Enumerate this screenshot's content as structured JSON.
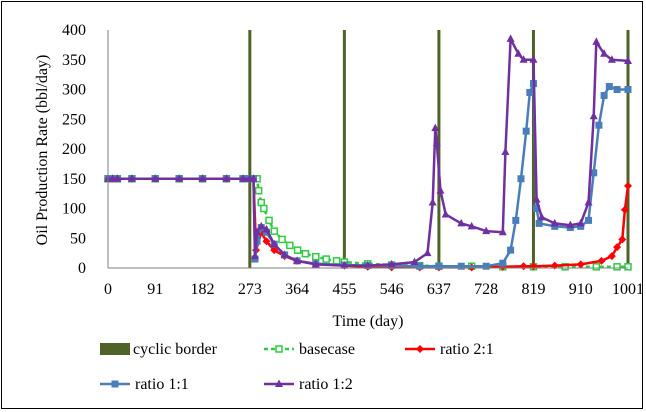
{
  "chart_data": {
    "type": "line",
    "title": "",
    "xlabel": "Time (day)",
    "ylabel": "Oil Production Rate (bbl/day)",
    "xlim": [
      0,
      1001
    ],
    "ylim": [
      0,
      400
    ],
    "x_ticks": [
      0,
      91,
      182,
      273,
      364,
      455,
      546,
      637,
      728,
      819,
      910,
      1001
    ],
    "y_ticks": [
      0,
      50,
      100,
      150,
      200,
      250,
      300,
      350,
      400
    ],
    "grid": false,
    "legend_position": "bottom",
    "cyclic_border": {
      "name": "cyclic border",
      "color": "#4f6228",
      "x": [
        273,
        455,
        637,
        819,
        1001
      ]
    },
    "series": [
      {
        "name": "basecase",
        "color": "#2ecc40",
        "marker": "square-open",
        "dashed": true,
        "points": [
          [
            0,
            150
          ],
          [
            9,
            150
          ],
          [
            18,
            150
          ],
          [
            46,
            150
          ],
          [
            91,
            150
          ],
          [
            137,
            150
          ],
          [
            182,
            150
          ],
          [
            228,
            150
          ],
          [
            260,
            150
          ],
          [
            273,
            150
          ],
          [
            280,
            150
          ],
          [
            287,
            150
          ],
          [
            290,
            130
          ],
          [
            295,
            110
          ],
          [
            300,
            100
          ],
          [
            310,
            80
          ],
          [
            320,
            62
          ],
          [
            335,
            48
          ],
          [
            350,
            38
          ],
          [
            365,
            30
          ],
          [
            380,
            24
          ],
          [
            400,
            19
          ],
          [
            420,
            15
          ],
          [
            440,
            12
          ],
          [
            455,
            10
          ],
          [
            500,
            7
          ],
          [
            546,
            5
          ],
          [
            600,
            4
          ],
          [
            637,
            3
          ],
          [
            700,
            3
          ],
          [
            760,
            2
          ],
          [
            819,
            2
          ],
          [
            880,
            2
          ],
          [
            940,
            2
          ],
          [
            980,
            2
          ],
          [
            1001,
            2
          ]
        ]
      },
      {
        "name": "ratio 2:1",
        "color": "#ff0000",
        "marker": "diamond",
        "dashed": false,
        "points": [
          [
            0,
            150
          ],
          [
            9,
            150
          ],
          [
            18,
            150
          ],
          [
            46,
            150
          ],
          [
            91,
            150
          ],
          [
            137,
            150
          ],
          [
            182,
            150
          ],
          [
            228,
            150
          ],
          [
            260,
            150
          ],
          [
            273,
            150
          ],
          [
            280,
            150
          ],
          [
            285,
            30
          ],
          [
            295,
            60
          ],
          [
            305,
            45
          ],
          [
            320,
            30
          ],
          [
            340,
            20
          ],
          [
            364,
            12
          ],
          [
            400,
            7
          ],
          [
            455,
            4
          ],
          [
            500,
            2
          ],
          [
            546,
            1
          ],
          [
            600,
            1
          ],
          [
            637,
            1
          ],
          [
            700,
            1
          ],
          [
            760,
            2
          ],
          [
            800,
            3
          ],
          [
            819,
            3
          ],
          [
            860,
            4
          ],
          [
            910,
            6
          ],
          [
            950,
            12
          ],
          [
            970,
            20
          ],
          [
            980,
            35
          ],
          [
            990,
            48
          ],
          [
            995,
            98
          ],
          [
            1001,
            138
          ]
        ]
      },
      {
        "name": "ratio 1:1",
        "color": "#4a7ebb",
        "marker": "square",
        "dashed": false,
        "points": [
          [
            0,
            150
          ],
          [
            9,
            150
          ],
          [
            18,
            150
          ],
          [
            46,
            150
          ],
          [
            91,
            150
          ],
          [
            137,
            150
          ],
          [
            182,
            150
          ],
          [
            228,
            150
          ],
          [
            260,
            150
          ],
          [
            273,
            150
          ],
          [
            280,
            150
          ],
          [
            283,
            15
          ],
          [
            287,
            45
          ],
          [
            295,
            68
          ],
          [
            305,
            60
          ],
          [
            320,
            40
          ],
          [
            340,
            22
          ],
          [
            364,
            12
          ],
          [
            400,
            7
          ],
          [
            455,
            5
          ],
          [
            500,
            4
          ],
          [
            546,
            4
          ],
          [
            600,
            3
          ],
          [
            637,
            3
          ],
          [
            680,
            3
          ],
          [
            728,
            3
          ],
          [
            760,
            8
          ],
          [
            775,
            30
          ],
          [
            785,
            80
          ],
          [
            795,
            150
          ],
          [
            805,
            230
          ],
          [
            812,
            295
          ],
          [
            819,
            310
          ],
          [
            825,
            100
          ],
          [
            830,
            75
          ],
          [
            860,
            70
          ],
          [
            890,
            68
          ],
          [
            910,
            70
          ],
          [
            925,
            80
          ],
          [
            935,
            160
          ],
          [
            945,
            240
          ],
          [
            955,
            290
          ],
          [
            965,
            305
          ],
          [
            980,
            300
          ],
          [
            1001,
            300
          ]
        ]
      },
      {
        "name": "ratio 1:2",
        "color": "#7030a0",
        "marker": "triangle",
        "dashed": false,
        "points": [
          [
            0,
            150
          ],
          [
            9,
            150
          ],
          [
            18,
            150
          ],
          [
            46,
            150
          ],
          [
            91,
            150
          ],
          [
            137,
            150
          ],
          [
            182,
            150
          ],
          [
            228,
            150
          ],
          [
            260,
            150
          ],
          [
            273,
            150
          ],
          [
            280,
            150
          ],
          [
            283,
            20
          ],
          [
            287,
            60
          ],
          [
            295,
            70
          ],
          [
            305,
            65
          ],
          [
            320,
            40
          ],
          [
            340,
            22
          ],
          [
            364,
            12
          ],
          [
            400,
            6
          ],
          [
            455,
            4
          ],
          [
            500,
            4
          ],
          [
            546,
            6
          ],
          [
            590,
            10
          ],
          [
            615,
            25
          ],
          [
            625,
            110
          ],
          [
            630,
            235
          ],
          [
            633,
            210
          ],
          [
            640,
            130
          ],
          [
            650,
            90
          ],
          [
            680,
            75
          ],
          [
            700,
            70
          ],
          [
            728,
            62
          ],
          [
            760,
            60
          ],
          [
            765,
            195
          ],
          [
            775,
            385
          ],
          [
            790,
            360
          ],
          [
            800,
            350
          ],
          [
            819,
            350
          ],
          [
            825,
            115
          ],
          [
            835,
            85
          ],
          [
            860,
            75
          ],
          [
            890,
            72
          ],
          [
            910,
            75
          ],
          [
            925,
            110
          ],
          [
            935,
            255
          ],
          [
            940,
            380
          ],
          [
            955,
            360
          ],
          [
            970,
            350
          ],
          [
            1001,
            348
          ]
        ]
      }
    ]
  },
  "legend": [
    {
      "name": "cyclic border",
      "label": "cyclic border"
    },
    {
      "name": "basecase",
      "label": "basecase"
    },
    {
      "name": "ratio 2:1",
      "label": "ratio 2:1"
    },
    {
      "name": "ratio 1:1",
      "label": "ratio 1:1"
    },
    {
      "name": "ratio 1:2",
      "label": "ratio 1:2"
    }
  ]
}
